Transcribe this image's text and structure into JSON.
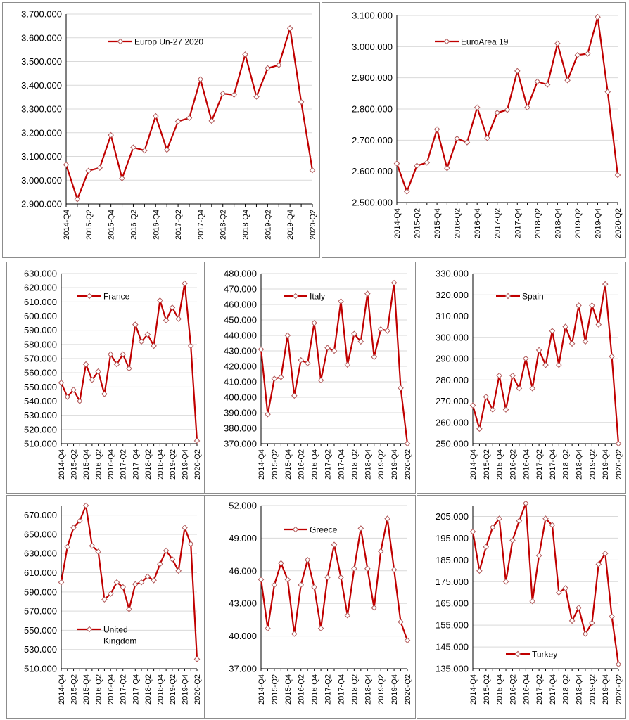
{
  "colors": {
    "series": "#c00000",
    "marker_fill": "#ffffff",
    "marker_stroke": "#b05858",
    "frame": "#8c8c8c",
    "grid": "#d9d9d9",
    "axis": "#000000"
  },
  "x_tick_labels": [
    "2014-Q4",
    "2015-Q2",
    "2015-Q4",
    "2016-Q2",
    "2016-Q4",
    "2017-Q2",
    "2017-Q4",
    "2018-Q2",
    "2018-Q4",
    "2019-Q2",
    "2019-Q4",
    "2020-Q2"
  ],
  "chart_data": [
    {
      "type": "line",
      "legend": "Europ Un-27  2020",
      "legend_position": "top-left",
      "x": [
        "2014-Q4",
        "2015-Q1",
        "2015-Q2",
        "2015-Q3",
        "2015-Q4",
        "2016-Q1",
        "2016-Q2",
        "2016-Q3",
        "2016-Q4",
        "2017-Q1",
        "2017-Q2",
        "2017-Q3",
        "2017-Q4",
        "2018-Q1",
        "2018-Q2",
        "2018-Q3",
        "2018-Q4",
        "2019-Q1",
        "2019-Q2",
        "2019-Q3",
        "2019-Q4",
        "2020-Q1",
        "2020-Q2"
      ],
      "values": [
        3065,
        2920,
        3040,
        3052,
        3190,
        3008,
        3138,
        3125,
        3270,
        3128,
        3248,
        3262,
        3425,
        3250,
        3365,
        3360,
        3530,
        3352,
        3472,
        3485,
        3640,
        3330,
        3042
      ],
      "ylim": [
        2900,
        3700
      ],
      "ytick_step": 100,
      "y_tick_labels": [
        "2.900.000",
        "3.000.000",
        "3.100.000",
        "3.200.000",
        "3.300.000",
        "3.400.000",
        "3.500.000",
        "3.600.000",
        "3.700.000"
      ],
      "grid": "horizontal"
    },
    {
      "type": "line",
      "legend": "EuroArea 19",
      "legend_position": "top-left",
      "x": [
        "2014-Q4",
        "2015-Q1",
        "2015-Q2",
        "2015-Q3",
        "2015-Q4",
        "2016-Q1",
        "2016-Q2",
        "2016-Q3",
        "2016-Q4",
        "2017-Q1",
        "2017-Q2",
        "2017-Q3",
        "2017-Q4",
        "2018-Q1",
        "2018-Q2",
        "2018-Q3",
        "2018-Q4",
        "2019-Q1",
        "2019-Q2",
        "2019-Q3",
        "2019-Q4",
        "2020-Q1",
        "2020-Q2"
      ],
      "values": [
        2625,
        2535,
        2618,
        2628,
        2735,
        2610,
        2705,
        2693,
        2805,
        2707,
        2788,
        2797,
        2922,
        2805,
        2888,
        2878,
        3010,
        2892,
        2973,
        2977,
        3095,
        2855,
        2588
      ],
      "ylim": [
        2500,
        3100
      ],
      "ytick_step": 100,
      "y_tick_labels": [
        "2.500.000",
        "2.600.000",
        "2.700.000",
        "2.800.000",
        "2.900.000",
        "3.000.000",
        "3.100.000"
      ],
      "grid": "horizontal"
    },
    {
      "type": "line",
      "legend": "France",
      "legend_position": "top-left",
      "x": [
        "2014-Q4",
        "2015-Q1",
        "2015-Q2",
        "2015-Q3",
        "2015-Q4",
        "2016-Q1",
        "2016-Q2",
        "2016-Q3",
        "2016-Q4",
        "2017-Q1",
        "2017-Q2",
        "2017-Q3",
        "2017-Q4",
        "2018-Q1",
        "2018-Q2",
        "2018-Q3",
        "2018-Q4",
        "2019-Q1",
        "2019-Q2",
        "2019-Q3",
        "2019-Q4",
        "2020-Q1",
        "2020-Q2"
      ],
      "values": [
        553,
        543,
        548,
        540,
        566,
        555,
        561,
        545,
        573,
        566,
        573,
        563,
        594,
        582,
        587,
        579,
        611,
        597,
        606,
        598,
        623,
        579,
        512
      ],
      "ylim": [
        510,
        630
      ],
      "ytick_step": 10,
      "y_tick_labels": [
        "510.000",
        "520.000",
        "530.000",
        "540.000",
        "550.000",
        "560.000",
        "570.000",
        "580.000",
        "590.000",
        "600.000",
        "610.000",
        "620.000",
        "630.000"
      ],
      "grid": "horizontal"
    },
    {
      "type": "line",
      "legend": "Italy",
      "legend_position": "top-left",
      "x": [
        "2014-Q4",
        "2015-Q1",
        "2015-Q2",
        "2015-Q3",
        "2015-Q4",
        "2016-Q1",
        "2016-Q2",
        "2016-Q3",
        "2016-Q4",
        "2017-Q1",
        "2017-Q2",
        "2017-Q3",
        "2017-Q4",
        "2018-Q1",
        "2018-Q2",
        "2018-Q3",
        "2018-Q4",
        "2019-Q1",
        "2019-Q2",
        "2019-Q3",
        "2019-Q4",
        "2020-Q1",
        "2020-Q2"
      ],
      "values": [
        431,
        389,
        412,
        413,
        440,
        401,
        424,
        422,
        448,
        411,
        432,
        430,
        462,
        421,
        441,
        436,
        467,
        426,
        444,
        443,
        474,
        406,
        370
      ],
      "ylim": [
        370,
        480
      ],
      "ytick_step": 10,
      "y_tick_labels": [
        "370.000",
        "380.000",
        "390.000",
        "400.000",
        "410.000",
        "420.000",
        "430.000",
        "440.000",
        "450.000",
        "460.000",
        "470.000",
        "480.000"
      ],
      "grid": "horizontal"
    },
    {
      "type": "line",
      "legend": "Spain",
      "legend_position": "top-left",
      "x": [
        "2014-Q4",
        "2015-Q1",
        "2015-Q2",
        "2015-Q3",
        "2015-Q4",
        "2016-Q1",
        "2016-Q2",
        "2016-Q3",
        "2016-Q4",
        "2017-Q1",
        "2017-Q2",
        "2017-Q3",
        "2017-Q4",
        "2018-Q1",
        "2018-Q2",
        "2018-Q3",
        "2018-Q4",
        "2019-Q1",
        "2019-Q2",
        "2019-Q3",
        "2019-Q4",
        "2020-Q1",
        "2020-Q2"
      ],
      "values": [
        268,
        257,
        272,
        266,
        282,
        266,
        282,
        276,
        290,
        276,
        294,
        287,
        303,
        287,
        305,
        297,
        315,
        298,
        315,
        306,
        325,
        291,
        250
      ],
      "ylim": [
        250,
        330
      ],
      "ytick_step": 10,
      "y_tick_labels": [
        "250.000",
        "260.000",
        "270.000",
        "280.000",
        "290.000",
        "300.000",
        "310.000",
        "320.000",
        "330.000"
      ],
      "grid": "horizontal"
    },
    {
      "type": "line",
      "legend": "United Kingdom",
      "legend_lines": [
        "United",
        "Kingdom"
      ],
      "legend_position": "bottom-left",
      "x": [
        "2014-Q4",
        "2015-Q1",
        "2015-Q2",
        "2015-Q3",
        "2015-Q4",
        "2016-Q1",
        "2016-Q2",
        "2016-Q3",
        "2016-Q4",
        "2017-Q1",
        "2017-Q2",
        "2017-Q3",
        "2017-Q4",
        "2018-Q1",
        "2018-Q2",
        "2018-Q3",
        "2018-Q4",
        "2019-Q1",
        "2019-Q2",
        "2019-Q3",
        "2019-Q4",
        "2020-Q1",
        "2020-Q2"
      ],
      "values": [
        600,
        637,
        657,
        664,
        680,
        638,
        632,
        582,
        588,
        600,
        595,
        572,
        598,
        600,
        606,
        602,
        619,
        633,
        624,
        612,
        657,
        640,
        520
      ],
      "ylim": [
        510,
        680
      ],
      "ytick_step": 20,
      "y_tick_labels": [
        "510.000",
        "530.000",
        "550.000",
        "570.000",
        "590.000",
        "610.000",
        "630.000",
        "650.000",
        "670.000"
      ],
      "grid": "horizontal"
    },
    {
      "type": "line",
      "legend": "Greece",
      "legend_position": "top-left",
      "x": [
        "2014-Q4",
        "2015-Q1",
        "2015-Q2",
        "2015-Q3",
        "2015-Q4",
        "2016-Q1",
        "2016-Q2",
        "2016-Q3",
        "2016-Q4",
        "2017-Q1",
        "2017-Q2",
        "2017-Q3",
        "2017-Q4",
        "2018-Q1",
        "2018-Q2",
        "2018-Q3",
        "2018-Q4",
        "2019-Q1",
        "2019-Q2",
        "2019-Q3",
        "2019-Q4",
        "2020-Q1",
        "2020-Q2"
      ],
      "values": [
        45.2,
        40.7,
        44.7,
        46.7,
        45.2,
        40.2,
        44.7,
        47.0,
        44.5,
        40.7,
        45.4,
        48.4,
        45.4,
        41.9,
        46.2,
        49.9,
        46.2,
        42.6,
        47.8,
        50.8,
        46.1,
        41.3,
        39.6
      ],
      "ylim": [
        37,
        52
      ],
      "ytick_step": 3,
      "y_tick_labels": [
        "37.000",
        "40.000",
        "43.000",
        "46.000",
        "49.000",
        "52.000"
      ],
      "grid": "horizontal"
    },
    {
      "type": "line",
      "legend": "Turkey",
      "legend_position": "bottom-right",
      "x": [
        "2014-Q4",
        "2015-Q1",
        "2015-Q2",
        "2015-Q3",
        "2015-Q4",
        "2016-Q1",
        "2016-Q2",
        "2016-Q3",
        "2016-Q4",
        "2017-Q1",
        "2017-Q2",
        "2017-Q3",
        "2017-Q4",
        "2018-Q1",
        "2018-Q2",
        "2018-Q3",
        "2018-Q4",
        "2019-Q1",
        "2019-Q2",
        "2019-Q3",
        "2019-Q4",
        "2020-Q1",
        "2020-Q2"
      ],
      "values": [
        198,
        180,
        191,
        200,
        204,
        175,
        194,
        203,
        211,
        166,
        187,
        204,
        201,
        170,
        172,
        157,
        163,
        151,
        156,
        183,
        188,
        159,
        137
      ],
      "ylim": [
        135,
        210
      ],
      "ytick_step": 10,
      "y_tick_labels": [
        "135.000",
        "145.000",
        "155.000",
        "165.000",
        "175.000",
        "185.000",
        "195.000",
        "205.000"
      ],
      "grid": "horizontal"
    }
  ]
}
